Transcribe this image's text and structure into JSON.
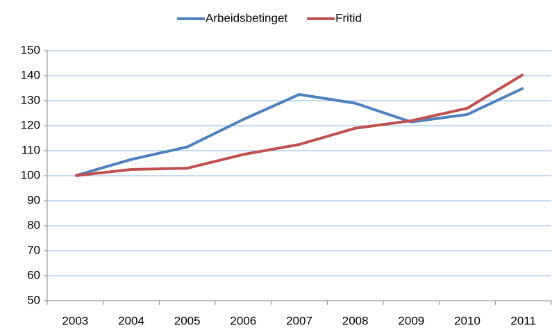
{
  "chart_data": {
    "type": "line",
    "categories": [
      "2003",
      "2004",
      "2005",
      "2006",
      "2007",
      "2008",
      "2009",
      "2010",
      "2011"
    ],
    "series": [
      {
        "name": "Arbeidsbetinget",
        "color": "#4f81bd",
        "values": [
          100,
          106.5,
          111.5,
          122.5,
          132.5,
          129,
          121.5,
          124.5,
          135
        ]
      },
      {
        "name": "Fritid",
        "color": "#c0504d",
        "values": [
          100,
          102.5,
          103,
          108.5,
          112.5,
          119,
          122,
          127,
          140.5
        ]
      }
    ],
    "ylim": [
      50,
      150
    ],
    "yticks": [
      50,
      60,
      70,
      80,
      90,
      100,
      110,
      120,
      130,
      140,
      150
    ],
    "grid": true,
    "legend": "top"
  }
}
